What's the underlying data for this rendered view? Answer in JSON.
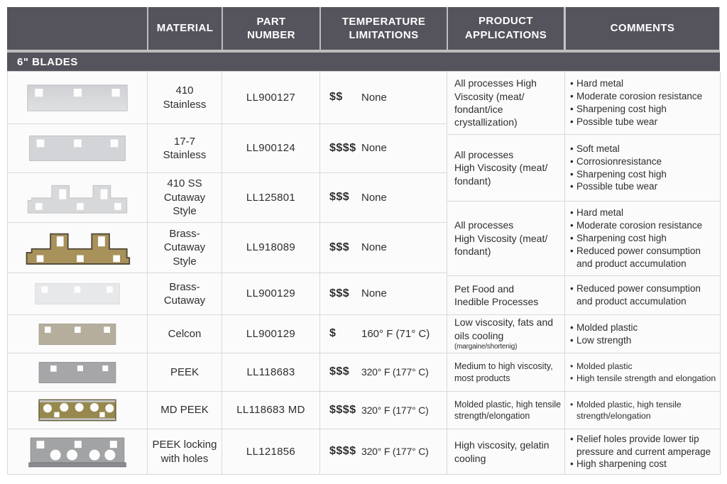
{
  "header": {
    "cells": [
      "",
      "MATERIAL",
      "PART\nNUMBER",
      "TEMPERATURE\nLIMITATIONS",
      "PRODUCT\nAPPLICATIONS",
      "COMMENTS"
    ]
  },
  "section_title": "6\" BLADES",
  "colors": {
    "header_bg": "#55535b",
    "row_bg": "#fbfbfb",
    "border": "#d9d9d9",
    "header_separator": "#bdbdbd",
    "blade_silver": "#d3d4d7",
    "blade_white": "#e7e8ea",
    "blade_tan": "#b6ae9d",
    "blade_gray": "#a6a6a9",
    "blade_brass": "#a8915a",
    "blade_olive": "#97884e"
  },
  "rows": [
    {
      "image": "blade-flat-silver-photo",
      "material": "410\nStainless",
      "part_number": "LL900127",
      "cost": "$$",
      "temperature": "None"
    },
    {
      "image": "blade-flat-silver-photo",
      "material": "17-7\nStainless",
      "part_number": "LL900124",
      "cost": "$$$$",
      "temperature": "None"
    },
    {
      "image": "blade-cutaway-silver-photo",
      "material": "410 SS\nCutaway\nStyle",
      "part_number": "LL125801",
      "cost": "$$$",
      "temperature": "None"
    },
    {
      "image": "blade-cutaway-brass-photo",
      "material": "Brass-\nCutaway\nStyle",
      "part_number": "LL918089",
      "cost": "$$$",
      "temperature": "None"
    },
    {
      "image": "blade-flat-white-photo",
      "material": "Brass-\nCutaway",
      "part_number": "LL900129",
      "cost": "$$$",
      "temperature": "None"
    },
    {
      "image": "blade-flat-tan-photo",
      "material": "Celcon",
      "part_number": "LL900129",
      "cost": "$",
      "temperature": "160° F (71° C)"
    },
    {
      "image": "blade-flat-gray-photo",
      "material": "PEEK",
      "part_number": "LL118683",
      "cost": "$$$",
      "temperature": "320° F (177° C)"
    },
    {
      "image": "blade-round-holes-olive-photo",
      "material": "MD PEEK",
      "part_number": "LL118683 MD",
      "cost": "$$$$",
      "temperature": "320° F (177° C)"
    },
    {
      "image": "blade-locking-holes-gray-photo",
      "material": "PEEK locking\nwith holes",
      "part_number": "LL121856",
      "cost": "$$$$",
      "temperature": "320° F (177° C)"
    }
  ],
  "app_cells": [
    {
      "application": "All processes High\nViscosity (meat/\nfondant/ice\ncrystallization)",
      "comments": [
        "Hard metal",
        "Moderate corosion resistance",
        "Sharpening cost high",
        "Possible tube wear"
      ]
    },
    {
      "application": "All processes\nHigh Viscosity (meat/\nfondant)",
      "comments": [
        "Soft metal",
        "Corrosionresistance",
        "Sharpening cost high",
        "Possible tube wear"
      ]
    },
    {
      "application": "All processes\nHigh Viscosity (meat/\nfondant)",
      "comments": [
        "Hard metal",
        "Moderate corosion resistance",
        "Sharpening cost high",
        "Reduced power consumption and product accumulation"
      ]
    },
    {
      "application": "Pet Food and\nInedible Processes",
      "comments": [
        "Reduced power consumption and product accumulation"
      ]
    },
    {
      "application": "Low viscosity, fats and\noils cooling ",
      "note": "(margaine/shortenig)",
      "comments": [
        "Molded plastic",
        "Low strength"
      ]
    },
    {
      "application": "Medium to high viscosity,\nmost products",
      "comments": [
        "Molded plastic",
        "High tensile strength and elongation"
      ]
    },
    {
      "application": "Molded plastic, high tensile\nstrength/elongation",
      "comments": [
        "Molded plastic, high tensile strength/elongation"
      ]
    },
    {
      "application": "High viscosity, gelatin\ncooling",
      "comments": [
        "Relief holes provide lower tip pressure and current amperage",
        "High sharpening cost"
      ]
    }
  ]
}
